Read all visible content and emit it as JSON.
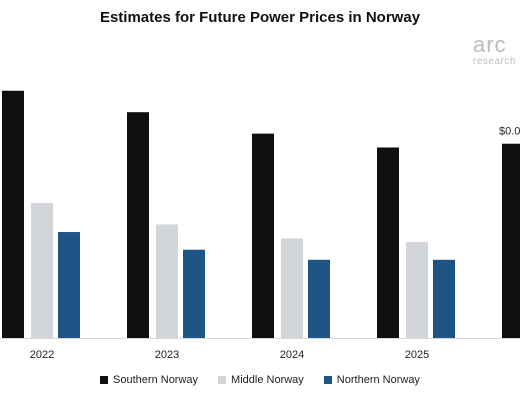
{
  "chart_data": {
    "type": "bar",
    "title": "Estimates for Future Power Prices in Norway",
    "categories": [
      "2022",
      "2023",
      "2024",
      "2025",
      ""
    ],
    "series": [
      {
        "name": "Southern Norway",
        "color": "#0d0f10",
        "values": [
          1.96,
          1.79,
          1.62,
          1.51,
          1.54
        ]
      },
      {
        "name": "Middle Norway",
        "color": "#d2d5d9",
        "values": [
          1.07,
          0.9,
          0.79,
          0.76,
          null
        ]
      },
      {
        "name": "Northern Norway",
        "color": "#1f5585",
        "values": [
          0.84,
          0.7,
          0.62,
          0.62,
          null
        ]
      }
    ],
    "annotations": [
      "$0.0"
    ],
    "ylim": [
      0,
      2.6
    ],
    "grid": false,
    "legend_position": "bottom",
    "xlabel": "",
    "ylabel": ""
  },
  "logo": {
    "word": "arc",
    "sub": "research"
  }
}
